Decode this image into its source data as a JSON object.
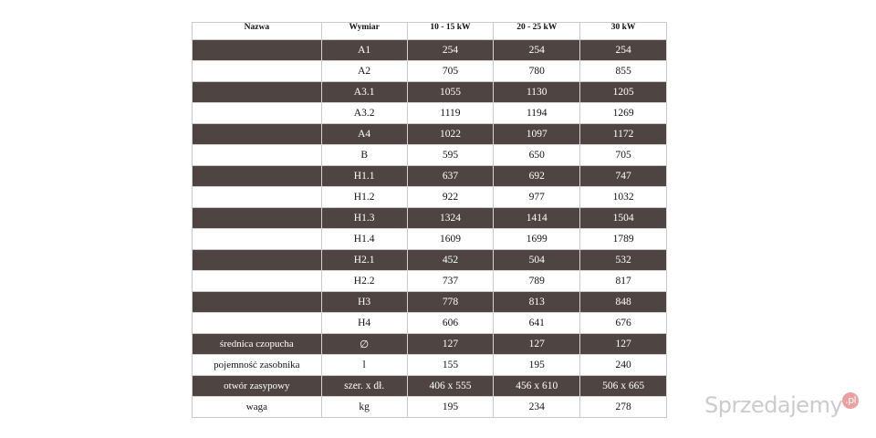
{
  "table": {
    "header": [
      "Nazwa",
      "Wymiar",
      "10 - 15 kW",
      "20 - 25 kW",
      "30 kW"
    ],
    "rows": [
      [
        "",
        "A1",
        "254",
        "254",
        "254"
      ],
      [
        "",
        "A2",
        "705",
        "780",
        "855"
      ],
      [
        "",
        "A3.1",
        "1055",
        "1130",
        "1205"
      ],
      [
        "",
        "A3.2",
        "1119",
        "1194",
        "1269"
      ],
      [
        "",
        "A4",
        "1022",
        "1097",
        "1172"
      ],
      [
        "",
        "B",
        "595",
        "650",
        "705"
      ],
      [
        "",
        "H1.1",
        "637",
        "692",
        "747"
      ],
      [
        "",
        "H1.2",
        "922",
        "977",
        "1032"
      ],
      [
        "",
        "H1.3",
        "1324",
        "1414",
        "1504"
      ],
      [
        "",
        "H1.4",
        "1609",
        "1699",
        "1789"
      ],
      [
        "",
        "H2.1",
        "452",
        "504",
        "532"
      ],
      [
        "",
        "H2.2",
        "737",
        "789",
        "817"
      ],
      [
        "",
        "H3",
        "778",
        "813",
        "848"
      ],
      [
        "",
        "H4",
        "606",
        "641",
        "676"
      ],
      [
        "średnica czopucha",
        "∅",
        "127",
        "127",
        "127"
      ],
      [
        "pojemność zasobnika",
        "l",
        "155",
        "195",
        "240"
      ],
      [
        "otwór zasypowy",
        "szer. x dł.",
        "406 x 555",
        "456 x 610",
        "506 x 665"
      ],
      [
        "waga",
        "kg",
        "195",
        "234",
        "278"
      ]
    ]
  },
  "watermark": {
    "name": "Sprzedajemy",
    "suffix": ".pl"
  }
}
